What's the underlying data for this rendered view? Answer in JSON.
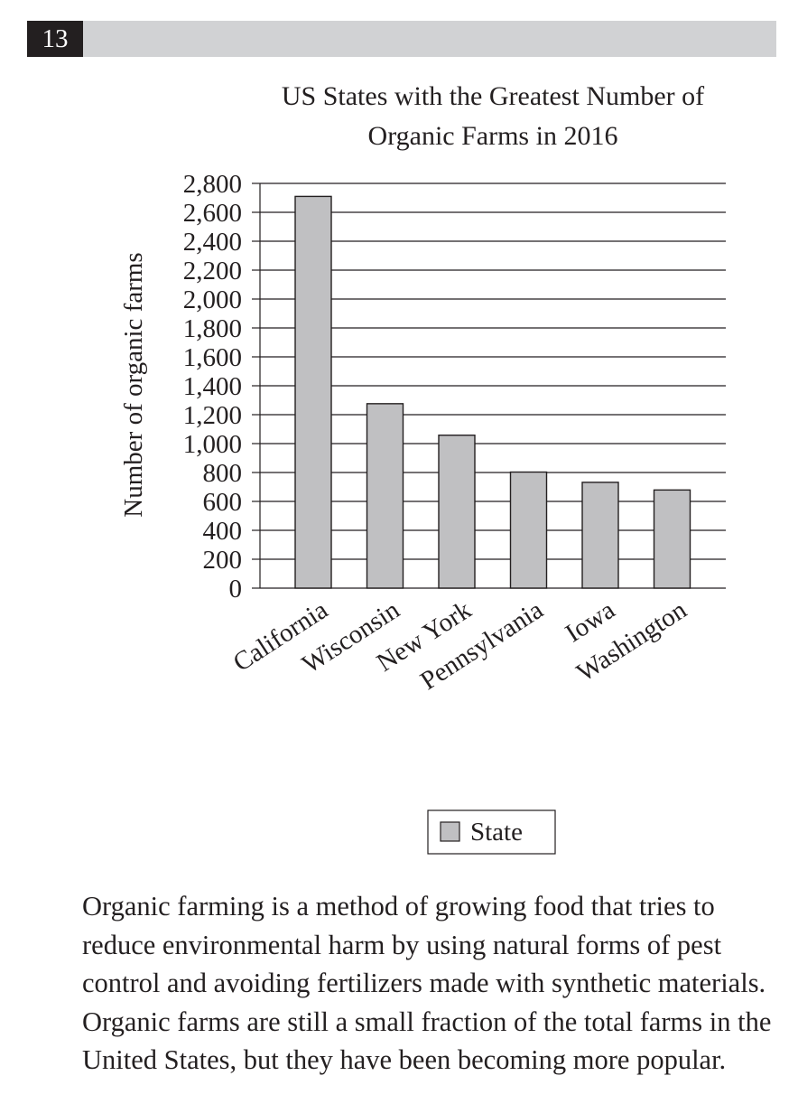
{
  "question": {
    "number": "13"
  },
  "chart_data": {
    "type": "bar",
    "title_lines": [
      "US States with the Greatest Number of",
      "Organic Farms in 2016"
    ],
    "categories": [
      "California",
      "Wisconsin",
      "New York",
      "Pennsylvania",
      "Iowa",
      "Washington"
    ],
    "series": [
      {
        "name": "State",
        "values": [
          2710,
          1276,
          1058,
          803,
          732,
          679
        ]
      }
    ],
    "ylabel": "Number of organic farms",
    "xlabel": "",
    "ylim": [
      0,
      2800
    ],
    "y_ticks": [
      0,
      200,
      400,
      600,
      800,
      1000,
      1200,
      1400,
      1600,
      1800,
      2000,
      2200,
      2400,
      2600,
      2800
    ],
    "y_tick_labels": [
      "0",
      "200",
      "400",
      "600",
      "800",
      "1,000",
      "1,200",
      "1,400",
      "1,600",
      "1,800",
      "2,000",
      "2,200",
      "2,400",
      "2,600",
      "2,800"
    ],
    "grid": true,
    "legend_position": "bottom-center",
    "colors": {
      "bar_fill": "#c0c0c2",
      "bar_stroke": "#231f20",
      "grid": "#231f20",
      "text": "#231f20"
    }
  },
  "passage": {
    "text": "Organic farming is a method of growing food that tries to reduce environmental harm by using natural forms of pest control and avoiding fertilizers made with synthetic materials. Organic farms are still a small fraction of the total farms in the United States, but they have been becoming more popular."
  }
}
